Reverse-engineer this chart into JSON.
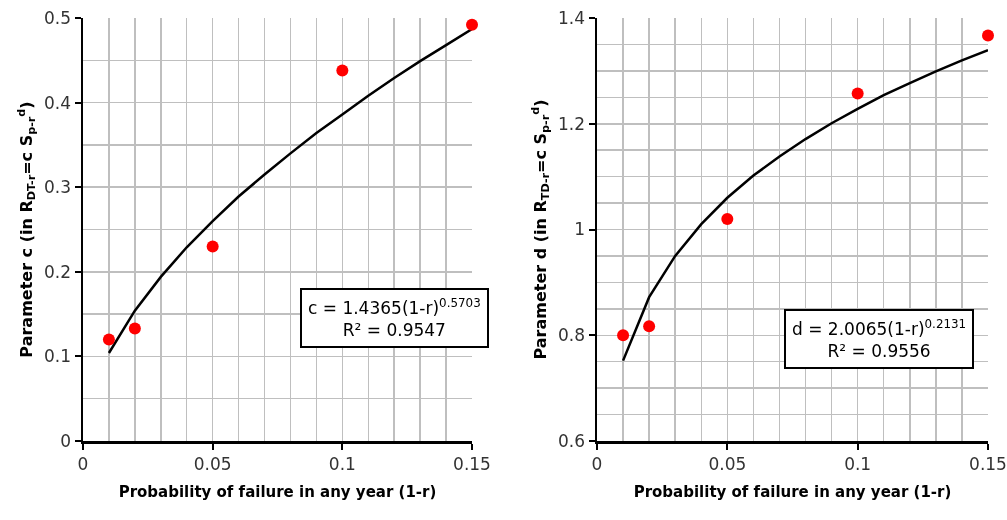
{
  "chart_data": [
    {
      "type": "scatter",
      "xlabel": "Probability of failure in any year (1-r)",
      "ylabel": "Parameter c (in R$_{DT-r}$=c S$_{p-r}$$^{d}$)",
      "xlim": [
        0,
        0.15
      ],
      "xticks": [
        0,
        0.05,
        0.1,
        0.15
      ],
      "ylim": [
        0,
        0.5
      ],
      "yticks": [
        0,
        0.1,
        0.2,
        0.3,
        0.4,
        0.5
      ],
      "grid": true,
      "annotations": [
        "c = 1.4365(1-r)$^{0.5703}$",
        "R² = 0.9547"
      ],
      "series": [
        {
          "color": "#ff0000",
          "marker": "circle",
          "x": [
            0.01,
            0.02,
            0.05,
            0.1,
            0.15
          ],
          "values": [
            0.12,
            0.133,
            0.23,
            0.438,
            0.492
          ]
        },
        {
          "type": "line",
          "marker": "none",
          "color": "#000000",
          "x": [
            0.01,
            0.02,
            0.03,
            0.04,
            0.05,
            0.06,
            0.07,
            0.08,
            0.09,
            0.1,
            0.11,
            0.12,
            0.13,
            0.14,
            0.15
          ],
          "values": [
            0.104,
            0.154,
            0.194,
            0.229,
            0.26,
            0.289,
            0.315,
            0.34,
            0.364,
            0.386,
            0.408,
            0.429,
            0.449,
            0.468,
            0.487
          ]
        }
      ]
    },
    {
      "type": "scatter",
      "xlabel": "Probability of failure in any year (1-r)",
      "ylabel": "Parameter d (in R$_{TD-r}$=c S$_{p-r}$$^{d}$)",
      "xlim": [
        0,
        0.15
      ],
      "xticks": [
        0,
        0.05,
        0.1,
        0.15
      ],
      "ylim": [
        0.6,
        1.4
      ],
      "yticks": [
        0.6,
        0.8,
        1,
        1.2,
        1.4
      ],
      "grid": true,
      "annotations": [
        "d = 2.0065(1-r)$^{0.2131}$",
        "R² = 0.9556"
      ],
      "series": [
        {
          "color": "#ff0000",
          "marker": "circle",
          "x": [
            0.01,
            0.02,
            0.05,
            0.1,
            0.15
          ],
          "values": [
            0.8,
            0.817,
            1.02,
            1.257,
            1.367
          ]
        },
        {
          "type": "line",
          "marker": "none",
          "color": "#000000",
          "x": [
            0.01,
            0.02,
            0.03,
            0.04,
            0.05,
            0.06,
            0.07,
            0.08,
            0.09,
            0.1,
            0.11,
            0.12,
            0.13,
            0.14,
            0.15
          ],
          "values": [
            0.752,
            0.872,
            0.95,
            1.01,
            1.06,
            1.102,
            1.138,
            1.171,
            1.201,
            1.228,
            1.254,
            1.277,
            1.299,
            1.32,
            1.339
          ]
        }
      ]
    }
  ]
}
